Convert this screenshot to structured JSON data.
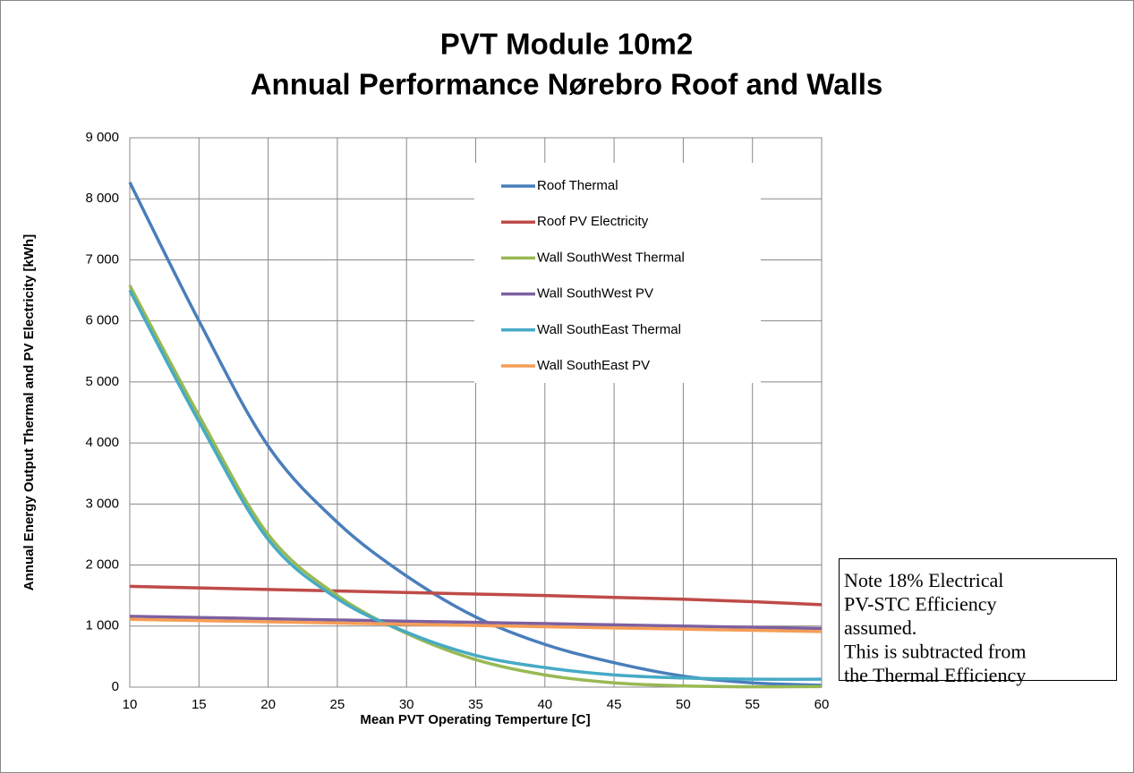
{
  "chart_data": {
    "type": "line",
    "title": "PVT Module 10m2",
    "subtitle": "Annual Performance Nørebro Roof and Walls",
    "x_label": "Mean PVT Operating Temperture [C]",
    "y_label": "Annual Energy Output Thermal and PV Electricity [kWh]",
    "x": [
      10,
      15,
      20,
      25,
      30,
      35,
      40,
      45,
      50,
      55,
      60
    ],
    "series": [
      {
        "name": "Roof Thermal",
        "color": "#4a7ebb",
        "values": [
          8270,
          6000,
          3950,
          2700,
          1820,
          1150,
          700,
          400,
          180,
          70,
          30
        ]
      },
      {
        "name": "Roof PV Electricity",
        "color": "#be4b48",
        "values": [
          1650,
          1625,
          1600,
          1575,
          1550,
          1525,
          1500,
          1470,
          1440,
          1400,
          1350
        ]
      },
      {
        "name": "Wall SouthWest Thermal",
        "color": "#98b954",
        "values": [
          6580,
          4450,
          2500,
          1500,
          880,
          450,
          200,
          70,
          20,
          5,
          10
        ]
      },
      {
        "name": "Wall SouthWest PV",
        "color": "#7d60a0",
        "values": [
          1160,
          1140,
          1120,
          1100,
          1080,
          1060,
          1040,
          1020,
          1000,
          980,
          960
        ]
      },
      {
        "name": "Wall SouthEast Thermal",
        "color": "#46aac5",
        "values": [
          6500,
          4350,
          2420,
          1450,
          900,
          520,
          320,
          200,
          150,
          130,
          130
        ]
      },
      {
        "name": "Wall SouthEast PV",
        "color": "#f59d56",
        "values": [
          1110,
          1090,
          1070,
          1050,
          1030,
          1010,
          990,
          970,
          950,
          930,
          910
        ]
      }
    ],
    "xlim": [
      10,
      60
    ],
    "xticks": [
      10,
      15,
      20,
      25,
      30,
      35,
      40,
      45,
      50,
      55,
      60
    ],
    "ylim": [
      0,
      9000
    ],
    "yticks": [
      0,
      {
        "value": 1000,
        "label": "1 000"
      },
      {
        "value": 2000,
        "label": "2 000"
      },
      {
        "value": 3000,
        "label": "3 000"
      },
      {
        "value": 4000,
        "label": "4 000"
      },
      {
        "value": 5000,
        "label": "5 000"
      },
      {
        "value": 6000,
        "label": "6 000"
      },
      {
        "value": 7000,
        "label": "7 000"
      },
      {
        "value": 8000,
        "label": "8 000"
      },
      {
        "value": 9000,
        "label": "9 000"
      }
    ],
    "grid": true,
    "annotation": [
      "Note 18%  Electrical",
      "PV-STC Efficiency",
      "assumed.",
      "This is subtracted from",
      "the Thermal Efficiency"
    ]
  }
}
